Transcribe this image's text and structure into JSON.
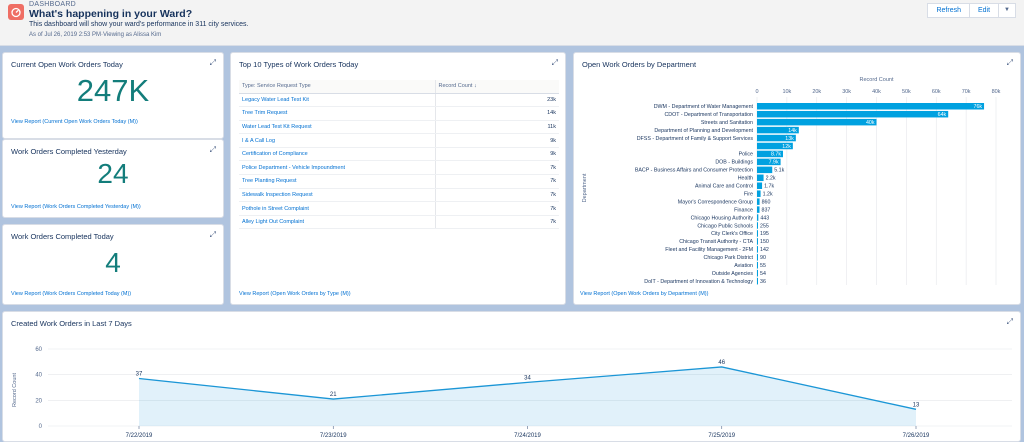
{
  "header": {
    "eyebrow": "DASHBOARD",
    "title": "What's happening in your Ward?",
    "description": "This dashboard will show your ward's performance in 311 city services.",
    "as_of": "As of Jul 26, 2019 2:53 PM·Viewing as Alissa Kim",
    "refresh_label": "Refresh",
    "edit_label": "Edit",
    "caret": "▼",
    "icon": "dashboard-icon"
  },
  "cards": {
    "open_today": {
      "title": "Current Open Work Orders Today",
      "value": "247K",
      "link": "View Report (Current Open Work Orders Today (M))"
    },
    "completed_yesterday": {
      "title": "Work Orders Completed Yesterday",
      "value": "24",
      "link": "View Report (Work Orders Completed Yesterday (M))"
    },
    "completed_today": {
      "title": "Work Orders Completed Today",
      "value": "4",
      "link": "View Report (Work Orders Completed Today (M))"
    },
    "top10": {
      "title": "Top 10 Types of Work Orders Today",
      "columns": [
        "Type: Service Request Type",
        "Record Count"
      ],
      "sort_icon": "↓",
      "rows": [
        {
          "type": "Legacy Water Lead Test Kit",
          "count": "23k"
        },
        {
          "type": "Tree Trim Request",
          "count": "14k"
        },
        {
          "type": "Water Lead Test Kit Request",
          "count": "11k"
        },
        {
          "type": "I & A Call Log",
          "count": "9k"
        },
        {
          "type": "Certification of Compliance",
          "count": "9k"
        },
        {
          "type": "Police Department - Vehicle Impoundment",
          "count": "7k"
        },
        {
          "type": "Tree Planting Request",
          "count": "7k"
        },
        {
          "type": "Sidewalk Inspection Request",
          "count": "7k"
        },
        {
          "type": "Pothole in Street Complaint",
          "count": "7k"
        },
        {
          "type": "Alley Light Out Complaint",
          "count": "7k"
        }
      ],
      "link": "View Report (Open Work Orders by Type (M))"
    },
    "by_department": {
      "title": "Open Work Orders by Department",
      "link": "View Report (Open Work Orders by Department (M))"
    },
    "last7": {
      "title": "Created Work Orders in Last 7 Days"
    }
  },
  "chart_data": [
    {
      "type": "bar",
      "orientation": "horizontal",
      "xlabel": "Record Count",
      "ylabel": "Department",
      "xlim": [
        0,
        80000
      ],
      "xticks": [
        "0",
        "10k",
        "20k",
        "30k",
        "40k",
        "50k",
        "60k",
        "70k",
        "80k"
      ],
      "color": "#00a1e0",
      "categories": [
        "DWM - Department of Water Management",
        "CDOT - Department of Transportation",
        "Streets and Sanitation",
        "Department of Planning and Development",
        "DFSS - Department of Family & Support Services",
        "",
        "Police",
        "DOB - Buildings",
        "BACP - Business Affairs and Consumer Protection",
        "Health",
        "Animal Care and Control",
        "Fire",
        "Mayor's Correspondence Group",
        "Finance",
        "Chicago Housing Authority",
        "Chicago Public Schools",
        "City Clerk's Office",
        "Chicago Transit Authority - CTA",
        "Fleet and Facility Management - 2FM",
        "Chicago Park District",
        "Aviation",
        "Outside Agencies",
        "DoIT - Department of Innovation & Technology"
      ],
      "values": [
        76000,
        64000,
        40000,
        14000,
        13000,
        12000,
        8700,
        7900,
        5100,
        2200,
        1700,
        1200,
        860,
        837,
        443,
        255,
        195,
        150,
        142,
        90,
        55,
        54,
        36
      ],
      "data_labels": [
        "76k",
        "64k",
        "40k",
        "14k",
        "13k",
        "12k",
        "8.7k",
        "7.9k",
        "5.1k",
        "2.2k",
        "1.7k",
        "1.2k",
        "860",
        "837",
        "443",
        "255",
        "195",
        "150",
        "142",
        "90",
        "55",
        "54",
        "36"
      ]
    },
    {
      "type": "area",
      "ylabel": "Record Count",
      "ylim": [
        0,
        60
      ],
      "yticks": [
        "0",
        "20",
        "40",
        "60"
      ],
      "color": "#1b96d6",
      "x": [
        "7/22/2019",
        "7/23/2019",
        "7/24/2019",
        "7/25/2019",
        "7/26/2019"
      ],
      "values": [
        37,
        21,
        34,
        46,
        13
      ],
      "data_labels": [
        "37",
        "21",
        "34",
        "46",
        "13"
      ]
    }
  ]
}
